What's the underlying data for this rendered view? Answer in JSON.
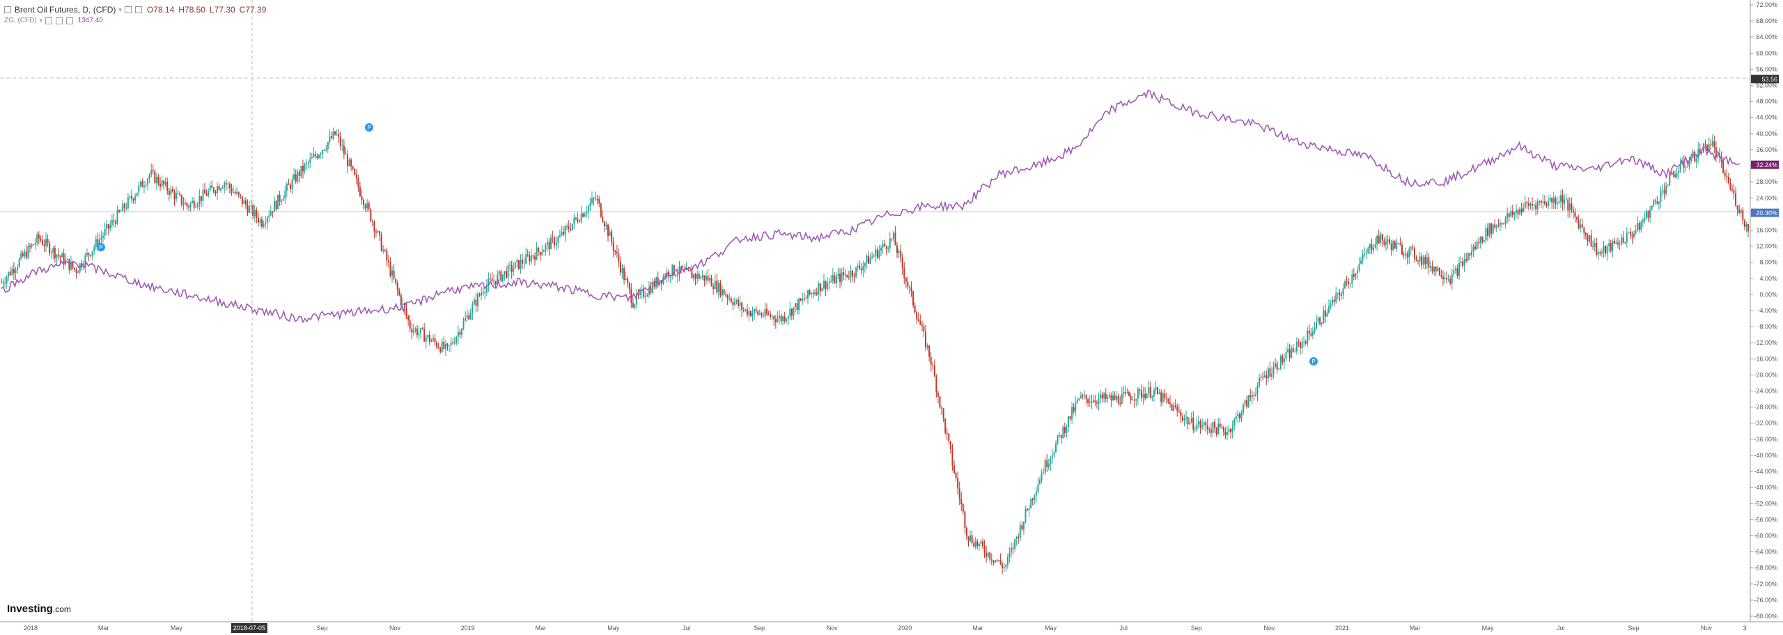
{
  "legend": {
    "main_title": "Brent Oil Futures, D, (CFD)",
    "open": "O78.14",
    "high": "H78.50",
    "low": "L77.30",
    "close": "C77.39",
    "overlay_title": "ZG, (CFD)",
    "overlay_value": "1347.40"
  },
  "logo": {
    "brand": "Investing",
    "suffix": ".com"
  },
  "colors": {
    "up": "#26a69a",
    "down": "#c0392b",
    "overlay": "#a05ab5",
    "crosshair": "#b0b0b0",
    "grid_line": "#cfcfcf",
    "axis_text": "#555555",
    "tag_overlay": "#7b1f6e",
    "tag_price": "#4a78c9",
    "tag_dark": "#333333"
  },
  "chart_data": {
    "type": "line",
    "y_axis_unit": "percent",
    "ylim": [
      -80,
      72
    ],
    "y_ticks": [
      "72.00%",
      "68.00%",
      "64.00%",
      "60.00%",
      "56.00%",
      "52.00%",
      "48.00%",
      "44.00%",
      "40.00%",
      "36.00%",
      "32.00%",
      "28.00%",
      "24.00%",
      "20.00%",
      "16.00%",
      "12.00%",
      "8.00%",
      "4.00%",
      "0.00%",
      "-4.00%",
      "-8.00%",
      "-12.00%",
      "-16.00%",
      "-20.00%",
      "-24.00%",
      "-28.00%",
      "-32.00%",
      "-36.00%",
      "-40.00%",
      "-44.00%",
      "-48.00%",
      "-52.00%",
      "-56.00%",
      "-60.00%",
      "-64.00%",
      "-68.00%",
      "-72.00%",
      "-76.00%",
      "-80.00%"
    ],
    "x_ticks": [
      "2018",
      "Mar",
      "May",
      "2018-07-05",
      "Sep",
      "Nov",
      "2019",
      "Mar",
      "May",
      "Jul",
      "Sep",
      "Nov",
      "2020",
      "Mar",
      "May",
      "Jul",
      "Sep",
      "Nov",
      "2021",
      "Mar",
      "May",
      "Jul",
      "Sep",
      "Nov",
      "3"
    ],
    "highlighted_x_tick": "2018-07-05",
    "price_tags": [
      {
        "label": "53.56",
        "value": 53.56,
        "style": "dark"
      },
      {
        "label": "32.24%",
        "value": 32.24,
        "style": "overlay"
      },
      {
        "label": "20.30%",
        "value": 20.3,
        "style": "price"
      }
    ],
    "series": [
      {
        "style": "candlestick",
        "x": [
          "2018-01",
          "2018-02",
          "2018-03",
          "2018-04",
          "2018-05",
          "2018-06",
          "2018-07",
          "2018-08",
          "2018-09",
          "2018-10",
          "2018-11",
          "2018-12",
          "2019-01",
          "2019-02",
          "2019-03",
          "2019-04",
          "2019-05",
          "2019-06",
          "2019-07",
          "2019-08",
          "2019-09",
          "2019-10",
          "2019-11",
          "2019-12",
          "2020-01",
          "2020-02",
          "2020-03",
          "2020-04",
          "2020-05",
          "2020-06",
          "2020-07",
          "2020-08",
          "2020-09",
          "2020-10",
          "2020-11",
          "2020-12",
          "2021-01",
          "2021-02",
          "2021-03",
          "2021-04",
          "2021-05",
          "2021-06",
          "2021-07",
          "2021-08",
          "2021-09",
          "2021-10",
          "2021-11",
          "2021-12"
        ],
        "values": [
          3,
          14,
          6,
          18,
          30,
          22,
          28,
          18,
          30,
          40,
          18,
          -8,
          -14,
          2,
          8,
          14,
          24,
          -2,
          6,
          4,
          -4,
          -6,
          2,
          6,
          14,
          -16,
          -60,
          -68,
          -44,
          -26,
          -26,
          -24,
          -32,
          -34,
          -20,
          -12,
          0,
          14,
          10,
          4,
          16,
          22,
          24,
          10,
          16,
          30,
          38,
          16
        ]
      },
      {
        "style": "line",
        "x": [
          "2018-01",
          "2018-02",
          "2018-03",
          "2018-04",
          "2018-05",
          "2018-06",
          "2018-07",
          "2018-08",
          "2018-09",
          "2018-10",
          "2018-11",
          "2018-12",
          "2019-01",
          "2019-02",
          "2019-03",
          "2019-04",
          "2019-05",
          "2019-06",
          "2019-07",
          "2019-08",
          "2019-09",
          "2019-10",
          "2019-11",
          "2019-12",
          "2020-01",
          "2020-02",
          "2020-03",
          "2020-04",
          "2020-05",
          "2020-06",
          "2020-07",
          "2020-08",
          "2020-09",
          "2020-10",
          "2020-11",
          "2020-12",
          "2021-01",
          "2021-02",
          "2021-03",
          "2021-04",
          "2021-05",
          "2021-06",
          "2021-07",
          "2021-08",
          "2021-09",
          "2021-10",
          "2021-11",
          "2021-12"
        ],
        "values": [
          1,
          6,
          8,
          5,
          2,
          0,
          -2,
          -4,
          -6,
          -5,
          -4,
          -3,
          1,
          2,
          3,
          2,
          0,
          -1,
          5,
          8,
          14,
          15,
          14,
          16,
          20,
          22,
          22,
          30,
          32,
          36,
          46,
          50,
          46,
          44,
          42,
          38,
          36,
          34,
          28,
          28,
          32,
          37,
          32,
          31,
          34,
          30,
          36,
          32
        ]
      }
    ]
  }
}
